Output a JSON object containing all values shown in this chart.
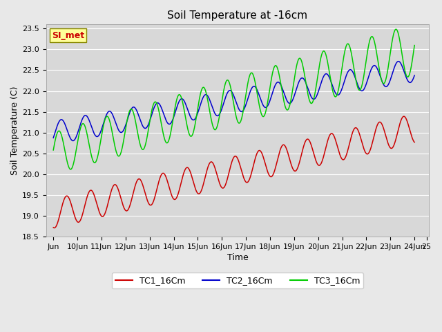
{
  "title": "Soil Temperature at -16cm",
  "xlabel": "Time",
  "ylabel": "Soil Temperature (C)",
  "ylim": [
    18.5,
    23.6
  ],
  "series": {
    "TC1_16Cm": {
      "color": "#cc0000",
      "label": "TC1_16Cm"
    },
    "TC2_16Cm": {
      "color": "#0000cc",
      "label": "TC2_16Cm"
    },
    "TC3_16Cm": {
      "color": "#00cc00",
      "label": "TC3_16Cm"
    }
  },
  "annotation_text": "SI_met",
  "annotation_color": "#cc0000",
  "annotation_bg": "#ffff99",
  "annotation_border": "#888800",
  "fig_bg_color": "#e8e8e8",
  "plot_bg_color": "#d8d8d8",
  "grid_color": "#ffffff",
  "title_fontsize": 11,
  "axis_label_fontsize": 9,
  "tick_fontsize": 8,
  "legend_fontsize": 9
}
